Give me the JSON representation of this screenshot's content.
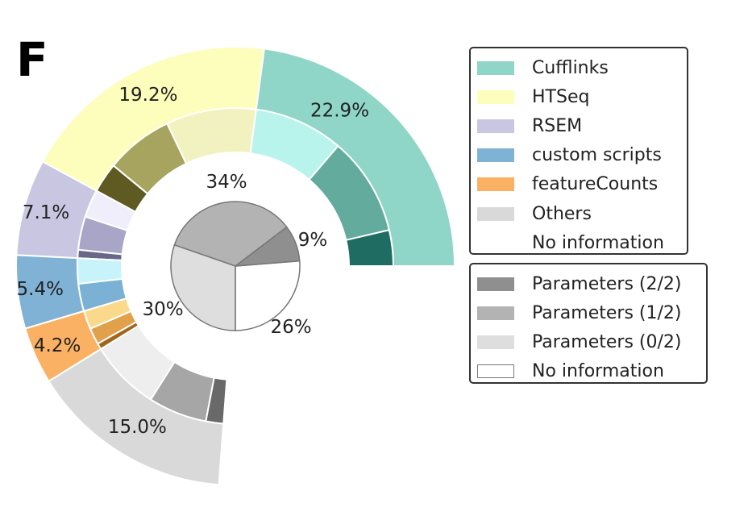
{
  "panel_label": "F",
  "chart_data": {
    "type": "pie",
    "charts": [
      {
        "kind": "three-quarter sunburst (outer: tool share, inner: parameter reporting per tool)",
        "tools": [
          {
            "name": "Cufflinks",
            "color": "#8fd5c8",
            "percent": 22.9,
            "label": "22.9%",
            "parameters": [
              {
                "level": "No information",
                "color": "#b8f3ec",
                "frac": 0.4
              },
              {
                "level": "Parameters (1/2)",
                "color": "#63ab9d",
                "frac": 0.44
              },
              {
                "level": "Parameters (2/2)",
                "color": "#1f6d62",
                "frac": 0.16
              }
            ]
          },
          {
            "name": "HTSeq",
            "color": "#fdfdbc",
            "percent": 19.2,
            "label": "19.2%",
            "parameters": [
              {
                "level": "Parameters (2/2)",
                "color": "#5e5a22",
                "frac": 0.16
              },
              {
                "level": "Parameters (1/2)",
                "color": "#a7a45f",
                "frac": 0.36
              },
              {
                "level": "Parameters (0/2)",
                "color": "#f2f2c0",
                "frac": 0.48
              }
            ]
          },
          {
            "name": "RSEM",
            "color": "#c9c6e2",
            "percent": 7.1,
            "label": "7.1%",
            "parameters": [
              {
                "level": "Parameters (2/2)",
                "color": "#68678a",
                "frac": 0.12
              },
              {
                "level": "Parameters (1/2)",
                "color": "#a8a5c6",
                "frac": 0.48
              },
              {
                "level": "No information",
                "color": "#efeefa",
                "frac": 0.4
              }
            ]
          },
          {
            "name": "custom scripts",
            "color": "#80b2d6",
            "percent": 5.4,
            "label": "5.4%",
            "parameters": [
              {
                "level": "Parameters (1/2)",
                "color": "#7ab1d4",
                "frac": 0.52
              },
              {
                "level": "No information",
                "color": "#c8f3fb",
                "frac": 0.48
              }
            ]
          },
          {
            "name": "featureCounts",
            "color": "#fbb163",
            "percent": 4.2,
            "label": "4.2%",
            "parameters": [
              {
                "level": "Parameters (2/2)",
                "color": "#a3651d",
                "frac": 0.15
              },
              {
                "level": "Parameters (1/2)",
                "color": "#e1a04a",
                "frac": 0.4
              },
              {
                "level": "Parameters (0/2)",
                "color": "#fbd98a",
                "frac": 0.45
              }
            ]
          },
          {
            "name": "Others",
            "color": "#d9d9d9",
            "percent": 15.0,
            "label": "15.0%",
            "parameters": [
              {
                "level": "Parameters (2/2)",
                "color": "#696969",
                "frac": 0.12
              },
              {
                "level": "Parameters (1/2)",
                "color": "#a6a6a6",
                "frac": 0.4
              },
              {
                "level": "Parameters (0/2)",
                "color": "#eeeeee",
                "frac": 0.48
              }
            ]
          },
          {
            "name": "No information",
            "color": "#ffffff",
            "percent": 26.2,
            "label": "",
            "parameters": []
          }
        ]
      },
      {
        "kind": "pie (overall parameter reporting)",
        "slices": [
          {
            "name": "Parameters (2/2)",
            "value": 9,
            "label": "9%",
            "color": "#8f8f8f"
          },
          {
            "name": "Parameters (1/2)",
            "value": 34,
            "label": "34%",
            "color": "#b3b3b3"
          },
          {
            "name": "Parameters (0/2)",
            "value": 30,
            "label": "30%",
            "color": "#dedede"
          },
          {
            "name": "No information",
            "value": 26,
            "label": "26%",
            "color": "#ffffff"
          }
        ]
      }
    ]
  },
  "legend_tools": [
    {
      "label": "Cufflinks",
      "color": "#8fd5c8"
    },
    {
      "label": "HTSeq",
      "color": "#fdfdbc"
    },
    {
      "label": "RSEM",
      "color": "#c9c6e2"
    },
    {
      "label": "custom scripts",
      "color": "#80b2d6"
    },
    {
      "label": "featureCounts",
      "color": "#fbb163"
    },
    {
      "label": "Others",
      "color": "#d9d9d9"
    },
    {
      "label": "No information",
      "color": "#ffffff"
    }
  ],
  "legend_params": [
    {
      "label": "Parameters (2/2)",
      "color": "#8f8f8f"
    },
    {
      "label": "Parameters (1/2)",
      "color": "#b3b3b3"
    },
    {
      "label": "Parameters (0/2)",
      "color": "#dedede"
    },
    {
      "label": "No information",
      "color": "#ffffff"
    }
  ]
}
